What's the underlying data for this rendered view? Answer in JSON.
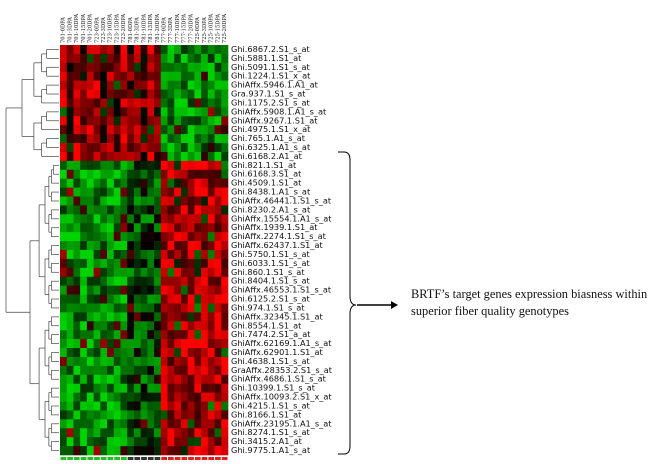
{
  "chart_data": {
    "type": "heatmap",
    "title": "",
    "xlabel": "",
    "ylabel": "",
    "color_scale": {
      "low": "#00d400",
      "mid": "#000000",
      "high": "#ff0000"
    },
    "columns": [
      "701-0DPA",
      "701-3DPA",
      "701-10DPA",
      "701-15DPA",
      "701-20DPA",
      "723-0DPA",
      "723-3DPA",
      "723-10DPA",
      "723-15DPA",
      "723-20DPA",
      "781-0DPA",
      "781-3DPA",
      "781-10DPA",
      "781-15DPA",
      "781-20DPA",
      "777-0DPA",
      "777-3DPA",
      "777-10DPA",
      "777-15DPA",
      "777-20DPA",
      "725-0DPA",
      "725-3DPA",
      "725-10DPA",
      "725-15DPA",
      "725-20DPA"
    ],
    "rows": [
      "Ghi.6867.2.S1_s_at",
      "Ghi.5881.1.S1_at",
      "Ghi.5091.1.S1_s_at",
      "Ghi.1224.1.S1_x_at",
      "GhiAffx.5946.1.A1_at",
      "Gra.937.1.S1_s_at",
      "Ghi.1175.2.S1_s_at",
      "GhiAffx.5908.1.A1_s_at",
      "GhiAffx.9267.1.S1_at",
      "Ghi.4975.1.S1_x_at",
      "Ghi.765.1.A1_s_at",
      "Ghi.6325.1.A1_s_at",
      "Ghi.6168.2.A1_at",
      "Ghi.821.1.S1_at",
      "Ghi.6168.3.S1_at",
      "Ghi.4509.1.S1_at",
      "Ghi.8438.1.A1_s_at",
      "GhiAffx.46441.1.S1_s_at",
      "Ghi.8230.2.A1_s_at",
      "GhiAffx.15554.1.A1_s_at",
      "GhiAffx.1939.1.S1_at",
      "GhiAffx.2274.1.S1_s_at",
      "GhiAffx.62437.1.S1_at",
      "Ghi.5750.1.S1_s_at",
      "Ghi.6033.1.S1_s_at",
      "Ghi.860.1.S1_s_at",
      "Ghi.8404.1.S1_s_at",
      "GhiAffx.46553.1.S1_s_at",
      "Ghi.6125.2.S1_s_at",
      "Ghi.974.1.S1_s_at",
      "GhiAffx.32345.1.S1_at",
      "Ghi.8554.1.S1_at",
      "Ghi.7474.2.S1_a_at",
      "GhiAffx.62169.1.A1_s_at",
      "GhiAffx.62901.1.S1_at",
      "Ghi.4638.1.S1_s_at",
      "GraAffx.28353.2.S1_s_at",
      "GhiAffx.4686.1.S1_s_at",
      "Ghi.10399.1.S1_s_at",
      "GhiAffx.10093.2.S1_x_at",
      "Ghi.4215.1.S1_s_at",
      "Ghi.8166.1.S1_at",
      "GhiAffx.23195.1.A1_s_at",
      "Ghi.8274.1.S1_s_at",
      "Ghi.3415.2.A1_at",
      "Ghi.9775.1.A1_s_at"
    ],
    "row_groups": {
      "top_cluster_rows": 13,
      "bottom_cluster_rows": 33
    },
    "values_top_cluster_mean": [
      2,
      1,
      2,
      1,
      2,
      2,
      1,
      2,
      1,
      2,
      1,
      2,
      1,
      2,
      1,
      -2,
      -2,
      -2,
      -2,
      -2,
      -2,
      -2,
      -2,
      -2,
      -2
    ],
    "values_bottom_cluster_mean": [
      -2,
      -2,
      -2,
      -2,
      -2,
      -2,
      -2,
      -2,
      -2,
      -2,
      -1,
      -1,
      -1,
      -1,
      -1,
      2,
      2,
      2,
      2,
      2,
      2,
      2,
      2,
      2,
      2
    ],
    "legend": "none"
  },
  "annotation": {
    "text_line1": "BRTF’s target genes expression biasness  within",
    "text_line2": "superior fiber quality genotypes"
  }
}
